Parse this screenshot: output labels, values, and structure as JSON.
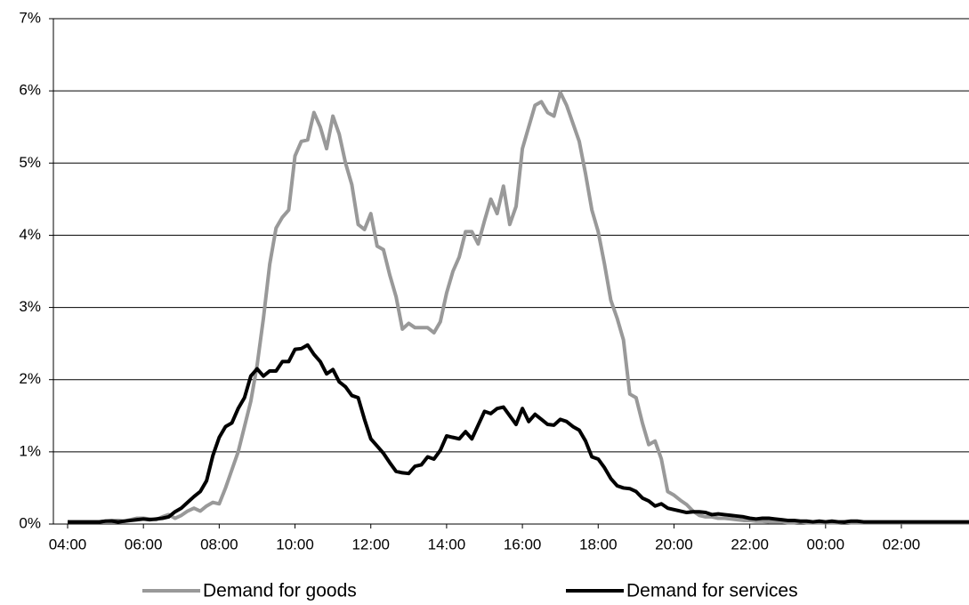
{
  "chart_data": {
    "type": "line",
    "categories": [
      "04:00",
      null,
      null,
      null,
      null,
      null,
      null,
      null,
      null,
      null,
      null,
      null,
      "06:00",
      null,
      null,
      null,
      null,
      null,
      null,
      null,
      null,
      null,
      null,
      null,
      "08:00",
      null,
      null,
      null,
      null,
      null,
      null,
      null,
      null,
      null,
      null,
      null,
      "10:00",
      null,
      null,
      null,
      null,
      null,
      null,
      null,
      null,
      null,
      null,
      null,
      "12:00",
      null,
      null,
      null,
      null,
      null,
      null,
      null,
      null,
      null,
      null,
      null,
      "14:00",
      null,
      null,
      null,
      null,
      null,
      null,
      null,
      null,
      null,
      null,
      null,
      "16:00",
      null,
      null,
      null,
      null,
      null,
      null,
      null,
      null,
      null,
      null,
      null,
      "18:00",
      null,
      null,
      null,
      null,
      null,
      null,
      null,
      null,
      null,
      null,
      null,
      "20:00",
      null,
      null,
      null,
      null,
      null,
      null,
      null,
      null,
      null,
      null,
      null,
      "22:00",
      null,
      null,
      null,
      null,
      null,
      null,
      null,
      null,
      null,
      null,
      null,
      "00:00",
      null,
      null,
      null,
      null,
      null,
      null,
      null,
      null,
      null,
      null,
      null,
      "02:00",
      null,
      null,
      null,
      null,
      null,
      null,
      null,
      null,
      null,
      null,
      null
    ],
    "series": [
      {
        "name": "Demand for goods",
        "color": "#999999",
        "values": [
          0.03,
          0.03,
          0.03,
          0.03,
          0.03,
          0.03,
          0.04,
          0.05,
          0.05,
          0.04,
          0.06,
          0.08,
          0.08,
          0.07,
          0.06,
          0.1,
          0.13,
          0.08,
          0.12,
          0.18,
          0.22,
          0.18,
          0.25,
          0.3,
          0.28,
          0.5,
          0.75,
          1.0,
          1.35,
          1.7,
          2.2,
          2.85,
          3.6,
          4.1,
          4.25,
          4.35,
          5.1,
          5.3,
          5.32,
          5.7,
          5.5,
          5.2,
          5.65,
          5.4,
          5.0,
          4.7,
          4.15,
          4.08,
          4.3,
          3.85,
          3.8,
          3.45,
          3.15,
          2.7,
          2.78,
          2.72,
          2.72,
          2.72,
          2.65,
          2.8,
          3.2,
          3.5,
          3.7,
          4.05,
          4.05,
          3.88,
          4.2,
          4.5,
          4.3,
          4.68,
          4.15,
          4.4,
          5.2,
          5.5,
          5.8,
          5.85,
          5.7,
          5.65,
          5.98,
          5.8,
          5.55,
          5.3,
          4.85,
          4.35,
          4.05,
          3.6,
          3.1,
          2.85,
          2.55,
          1.8,
          1.75,
          1.4,
          1.1,
          1.15,
          0.9,
          0.45,
          0.4,
          0.33,
          0.27,
          0.18,
          0.12,
          0.1,
          0.1,
          0.08,
          0.08,
          0.07,
          0.06,
          0.05,
          0.05,
          0.04,
          0.04,
          0.03,
          0.03,
          0.03,
          0.02,
          0.02,
          0.03,
          0.02,
          0.02,
          0.02,
          0.02,
          0.02,
          0.02,
          0.03,
          0.02,
          0.02,
          0.02,
          0.02,
          0.02,
          0.02,
          0.02,
          0.02,
          0.02,
          0.02,
          0.02,
          0.02,
          0.02,
          0.02,
          0.02,
          0.02,
          0.02,
          0.02,
          0.02,
          0.02
        ]
      },
      {
        "name": "Demand for services",
        "color": "#000000",
        "values": [
          0.03,
          0.03,
          0.03,
          0.03,
          0.03,
          0.03,
          0.04,
          0.04,
          0.03,
          0.04,
          0.05,
          0.06,
          0.07,
          0.06,
          0.07,
          0.08,
          0.1,
          0.17,
          0.22,
          0.3,
          0.38,
          0.45,
          0.6,
          0.95,
          1.2,
          1.35,
          1.4,
          1.6,
          1.75,
          2.05,
          2.15,
          2.05,
          2.12,
          2.12,
          2.25,
          2.25,
          2.42,
          2.43,
          2.48,
          2.35,
          2.25,
          2.08,
          2.14,
          1.97,
          1.9,
          1.78,
          1.75,
          1.45,
          1.18,
          1.08,
          0.98,
          0.85,
          0.73,
          0.71,
          0.7,
          0.8,
          0.82,
          0.93,
          0.9,
          1.02,
          1.22,
          1.2,
          1.18,
          1.28,
          1.18,
          1.37,
          1.56,
          1.53,
          1.6,
          1.62,
          1.5,
          1.38,
          1.6,
          1.42,
          1.52,
          1.45,
          1.38,
          1.37,
          1.45,
          1.42,
          1.35,
          1.3,
          1.15,
          0.93,
          0.9,
          0.78,
          0.63,
          0.53,
          0.5,
          0.49,
          0.45,
          0.36,
          0.32,
          0.25,
          0.28,
          0.22,
          0.2,
          0.18,
          0.16,
          0.17,
          0.17,
          0.16,
          0.13,
          0.14,
          0.13,
          0.12,
          0.11,
          0.1,
          0.08,
          0.07,
          0.08,
          0.08,
          0.07,
          0.06,
          0.05,
          0.05,
          0.04,
          0.04,
          0.03,
          0.04,
          0.03,
          0.04,
          0.03,
          0.03,
          0.04,
          0.04,
          0.03,
          0.03,
          0.03,
          0.03,
          0.03,
          0.03,
          0.03,
          0.03,
          0.03,
          0.03,
          0.03,
          0.03,
          0.03,
          0.03,
          0.03,
          0.03,
          0.03,
          0.03
        ]
      }
    ],
    "ylim": [
      0,
      7
    ],
    "yticks": [
      {
        "value": 0,
        "label": "0%"
      },
      {
        "value": 1,
        "label": "1%"
      },
      {
        "value": 2,
        "label": "2%"
      },
      {
        "value": 3,
        "label": "3%"
      },
      {
        "value": 4,
        "label": "4%"
      },
      {
        "value": 5,
        "label": "5%"
      },
      {
        "value": 6,
        "label": "6%"
      },
      {
        "value": 7,
        "label": "7%"
      }
    ],
    "grid": true,
    "legend": "bottom"
  }
}
